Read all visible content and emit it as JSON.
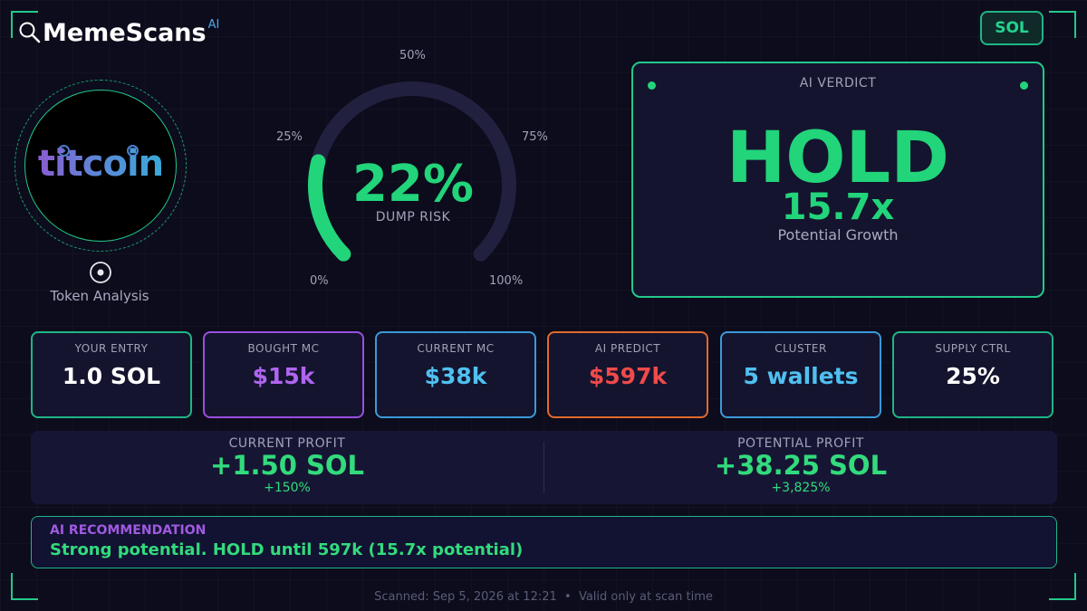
{
  "brand": {
    "name": "MemeScans",
    "superscript": "AI",
    "logo_icon": "magnifier-icon"
  },
  "chain_button": {
    "label": "SOL"
  },
  "token": {
    "name": "titcoin",
    "caption": "Token Analysis",
    "icon": "target-icon"
  },
  "gauge": {
    "value_label": "22%",
    "value": 22,
    "caption": "DUMP RISK",
    "scale": [
      "0%",
      "25%",
      "50%",
      "75%",
      "100%"
    ],
    "fill_color": "#22d47a",
    "track_color": "#22203f"
  },
  "verdict": {
    "title": "AI VERDICT",
    "decision": "HOLD",
    "multiple": "15.7x",
    "subtitle": "Potential Growth"
  },
  "stats": [
    {
      "label": "YOUR ENTRY",
      "value": "1.0 SOL",
      "border": "#1fb585",
      "color": "#ffffff"
    },
    {
      "label": "BOUGHT MC",
      "value": "$15k",
      "border": "#9a4fe0",
      "color": "#b065f0"
    },
    {
      "label": "CURRENT MC",
      "value": "$38k",
      "border": "#3a9ad8",
      "color": "#4fc0f0"
    },
    {
      "label": "AI PREDICT",
      "value": "$597k",
      "border": "#e06a2a",
      "color": "#f04a4a"
    },
    {
      "label": "CLUSTER",
      "value": "5 wallets",
      "border": "#3a9ad8",
      "color": "#4fc0f0"
    },
    {
      "label": "SUPPLY CTRL",
      "value": "25%",
      "border": "#1fb585",
      "color": "#ffffff"
    }
  ],
  "profit": {
    "current": {
      "label": "CURRENT PROFIT",
      "value": "+1.50 SOL",
      "percent": "+150%"
    },
    "potential": {
      "label": "POTENTIAL PROFIT",
      "value": "+38.25 SOL",
      "percent": "+3,825%"
    }
  },
  "recommendation": {
    "label": "AI RECOMMENDATION",
    "text": "Strong potential. HOLD until 597k (15.7x potential)"
  },
  "footer": {
    "text": "Scanned: Sep 5, 2026 at 12:21  •  Valid only at scan time"
  }
}
